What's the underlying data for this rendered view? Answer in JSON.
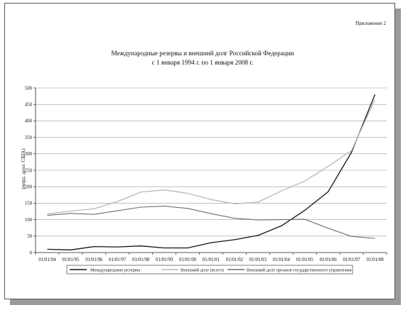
{
  "appendix_label": "Приложение 2",
  "chart_data": {
    "type": "line",
    "title_lines": [
      "Международные  резервы и внешний долг Российской Федерации",
      "с 1 января 1994 г. по 1 января 2008 г."
    ],
    "xlabel": "",
    "ylabel": "(млрд. долл. США)",
    "ylim": [
      0,
      500
    ],
    "yticks": [
      0,
      50,
      100,
      150,
      200,
      250,
      300,
      350,
      400,
      450,
      500
    ],
    "x": [
      "01/01/94",
      "01/01/95",
      "01/01/96",
      "01/01/97",
      "01/01/98",
      "01/01/99",
      "01/01/00",
      "01/01/01",
      "01/01/02",
      "01/01/03",
      "01/01/04",
      "01/01/05",
      "01/01/06",
      "01/01/07",
      "01/01/08"
    ],
    "grid": true,
    "legend_position": "bottom",
    "series": [
      {
        "name": "Международные резервы",
        "color": "#111111",
        "values": [
          10,
          8,
          18,
          17,
          20,
          14,
          14,
          30,
          39,
          52,
          81,
          128,
          185,
          305,
          480
        ]
      },
      {
        "name": "Внешний долг (всего)",
        "color": "#b8b8b8",
        "values": [
          117,
          126,
          133,
          155,
          184,
          190,
          180,
          161,
          148,
          153,
          187,
          217,
          262,
          310,
          465
        ]
      },
      {
        "name": "Внешний долг органов государственного управления",
        "color": "#6e6e6e",
        "values": [
          113,
          119,
          116,
          127,
          138,
          141,
          134,
          118,
          104,
          99,
          100,
          101,
          74,
          49,
          43
        ]
      }
    ]
  }
}
